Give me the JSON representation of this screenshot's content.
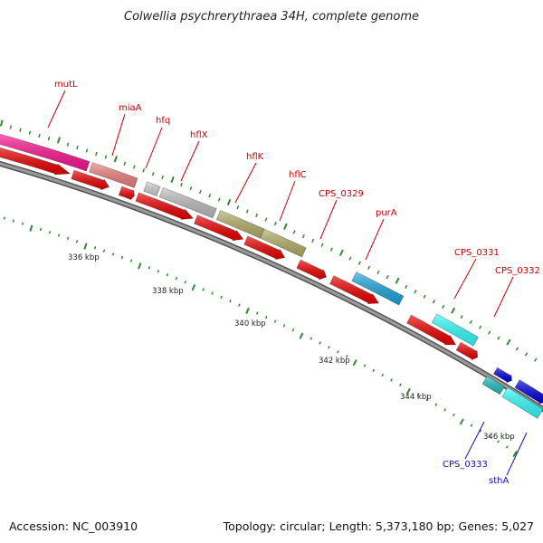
{
  "map": {
    "title": "Colwellia psychrerythraea 34H, complete genome",
    "accession": "Accession: NC_003910",
    "summary": "Topology: circular; Length: 5,373,180 bp; Genes: 5,027",
    "colors": {
      "backbone": "#888888",
      "tick": "#2e8b2e",
      "cds": "#ee0000",
      "label_red": "#cc0000",
      "label_blue": "#1010c0"
    },
    "scale_labels": [
      "336 kbp",
      "338 kbp",
      "340 kbp",
      "342 kbp",
      "344 kbp",
      "346 kbp"
    ],
    "genes": [
      {
        "name": "mutL",
        "label_color": "#cc0000",
        "color": "#ff1493"
      },
      {
        "name": "miaA",
        "label_color": "#cc0000",
        "color": "#f08080"
      },
      {
        "name": "hfq",
        "label_color": "#cc0000",
        "color": "#d3d3d3"
      },
      {
        "name": "hflX",
        "label_color": "#cc0000",
        "color": "#c0c0c0"
      },
      {
        "name": "hflK",
        "label_color": "#cc0000",
        "color": "#b8b06a"
      },
      {
        "name": "hflC",
        "label_color": "#cc0000",
        "color": "#b8b06a"
      },
      {
        "name": "CPS_0329",
        "label_color": "#cc0000",
        "color": "#ee0000"
      },
      {
        "name": "purA",
        "label_color": "#cc0000",
        "color": "#1ea7e0"
      },
      {
        "name": "CPS_0331",
        "label_color": "#cc0000",
        "color": "#33ffff"
      },
      {
        "name": "CPS_0332",
        "label_color": "#cc0000",
        "color": "#ee0000"
      },
      {
        "name": "CPS_0333",
        "label_color": "#1010c0",
        "color": "#20c0c0"
      },
      {
        "name": "sthA",
        "label_color": "#1010c0",
        "color": "#33ffff"
      }
    ]
  }
}
